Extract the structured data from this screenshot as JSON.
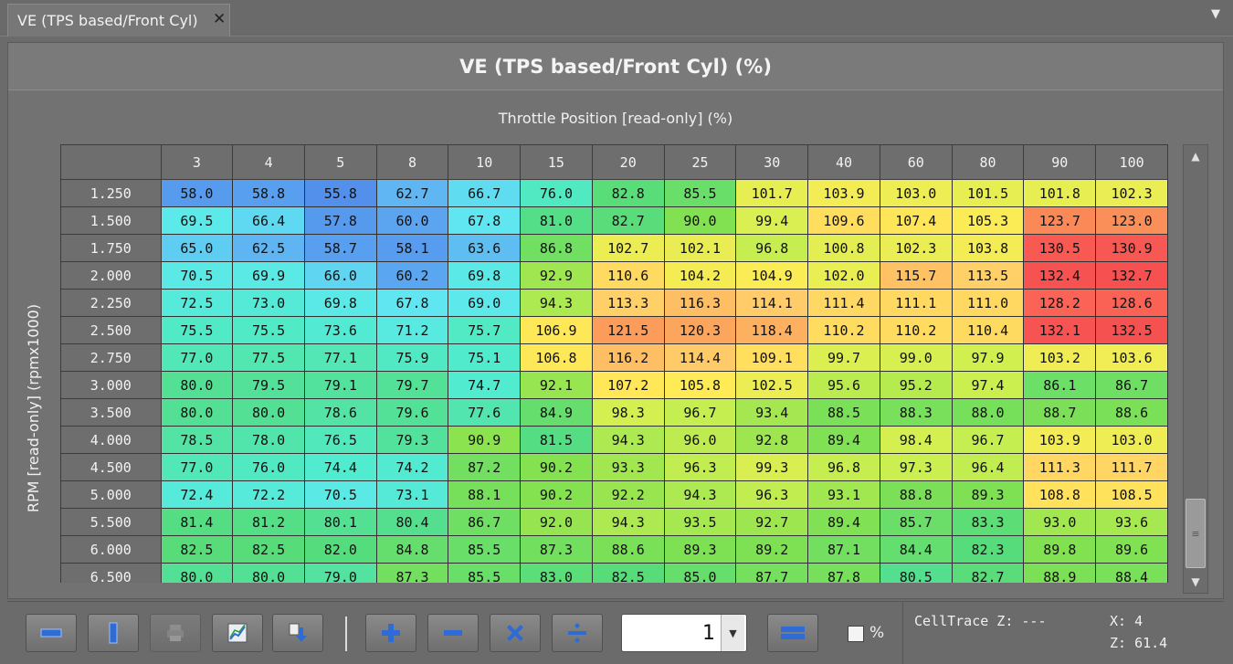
{
  "tab": {
    "title": "VE (TPS based/Front Cyl)",
    "close": "✕",
    "menu": "▼"
  },
  "panel": {
    "title": "VE (TPS based/Front Cyl) (%)",
    "x_axis": "Throttle Position [read-only]  (%)",
    "y_axis": "RPM [read-only]  (rpmx1000)"
  },
  "columns": [
    "3",
    "4",
    "5",
    "8",
    "10",
    "15",
    "20",
    "25",
    "30",
    "40",
    "60",
    "80",
    "90",
    "100"
  ],
  "rows": [
    {
      "rpm": "1.250",
      "values": [
        "58.0",
        "58.8",
        "55.8",
        "62.7",
        "66.7",
        "76.0",
        "82.8",
        "85.5",
        "101.7",
        "103.9",
        "103.0",
        "101.5",
        "101.8",
        "102.3"
      ]
    },
    {
      "rpm": "1.500",
      "values": [
        "69.5",
        "66.4",
        "57.8",
        "60.0",
        "67.8",
        "81.0",
        "82.7",
        "90.0",
        "99.4",
        "109.6",
        "107.4",
        "105.3",
        "123.7",
        "123.0"
      ]
    },
    {
      "rpm": "1.750",
      "values": [
        "65.0",
        "62.5",
        "58.7",
        "58.1",
        "63.6",
        "86.8",
        "102.7",
        "102.1",
        "96.8",
        "100.8",
        "102.3",
        "103.8",
        "130.5",
        "130.9"
      ]
    },
    {
      "rpm": "2.000",
      "values": [
        "70.5",
        "69.9",
        "66.0",
        "60.2",
        "69.8",
        "92.9",
        "110.6",
        "104.2",
        "104.9",
        "102.0",
        "115.7",
        "113.5",
        "132.4",
        "132.7"
      ]
    },
    {
      "rpm": "2.250",
      "values": [
        "72.5",
        "73.0",
        "69.8",
        "67.8",
        "69.0",
        "94.3",
        "113.3",
        "116.3",
        "114.1",
        "111.4",
        "111.1",
        "111.0",
        "128.2",
        "128.6"
      ]
    },
    {
      "rpm": "2.500",
      "values": [
        "75.5",
        "75.5",
        "73.6",
        "71.2",
        "75.7",
        "106.9",
        "121.5",
        "120.3",
        "118.4",
        "110.2",
        "110.2",
        "110.4",
        "132.1",
        "132.5"
      ]
    },
    {
      "rpm": "2.750",
      "values": [
        "77.0",
        "77.5",
        "77.1",
        "75.9",
        "75.1",
        "106.8",
        "116.2",
        "114.4",
        "109.1",
        "99.7",
        "99.0",
        "97.9",
        "103.2",
        "103.6"
      ]
    },
    {
      "rpm": "3.000",
      "values": [
        "80.0",
        "79.5",
        "79.1",
        "79.7",
        "74.7",
        "92.1",
        "107.2",
        "105.8",
        "102.5",
        "95.6",
        "95.2",
        "97.4",
        "86.1",
        "86.7"
      ]
    },
    {
      "rpm": "3.500",
      "values": [
        "80.0",
        "80.0",
        "78.6",
        "79.6",
        "77.6",
        "84.9",
        "98.3",
        "96.7",
        "93.4",
        "88.5",
        "88.3",
        "88.0",
        "88.7",
        "88.6"
      ]
    },
    {
      "rpm": "4.000",
      "values": [
        "78.5",
        "78.0",
        "76.5",
        "79.3",
        "90.9",
        "81.5",
        "94.3",
        "96.0",
        "92.8",
        "89.4",
        "98.4",
        "96.7",
        "103.9",
        "103.0"
      ]
    },
    {
      "rpm": "4.500",
      "values": [
        "77.0",
        "76.0",
        "74.4",
        "74.2",
        "87.2",
        "90.2",
        "93.3",
        "96.3",
        "99.3",
        "96.8",
        "97.3",
        "96.4",
        "111.3",
        "111.7"
      ]
    },
    {
      "rpm": "5.000",
      "values": [
        "72.4",
        "72.2",
        "70.5",
        "73.1",
        "88.1",
        "90.2",
        "92.2",
        "94.3",
        "96.3",
        "93.1",
        "88.8",
        "89.3",
        "108.8",
        "108.5"
      ]
    },
    {
      "rpm": "5.500",
      "values": [
        "81.4",
        "81.2",
        "80.1",
        "80.4",
        "86.7",
        "92.0",
        "94.3",
        "93.5",
        "92.7",
        "89.4",
        "85.7",
        "83.3",
        "93.0",
        "93.6"
      ]
    },
    {
      "rpm": "6.000",
      "values": [
        "82.5",
        "82.5",
        "82.0",
        "84.8",
        "85.5",
        "87.3",
        "88.6",
        "89.3",
        "89.2",
        "87.1",
        "84.4",
        "82.3",
        "89.8",
        "89.6"
      ]
    },
    {
      "rpm": "6.500",
      "values": [
        "80.0",
        "80.0",
        "79.0",
        "87.3",
        "85.5",
        "83.0",
        "82.5",
        "85.0",
        "87.7",
        "87.8",
        "80.5",
        "82.7",
        "88.9",
        "88.4"
      ]
    }
  ],
  "toolbar": {
    "buttons": [
      {
        "name": "horizontal-bar-button",
        "icon": "horizontal-bar-icon"
      },
      {
        "name": "vertical-bar-button",
        "icon": "vertical-bar-icon"
      },
      {
        "name": "print-button",
        "icon": "printer-icon",
        "disabled": true
      },
      {
        "name": "graph-button",
        "icon": "graph-icon"
      },
      {
        "name": "import-button",
        "icon": "import-icon"
      },
      {
        "name": "add-button",
        "icon": "plus-icon"
      },
      {
        "name": "subtract-button",
        "icon": "minus-icon"
      },
      {
        "name": "multiply-button",
        "icon": "multiply-icon"
      },
      {
        "name": "divide-button",
        "icon": "divide-icon"
      },
      {
        "name": "set-equal-button",
        "icon": "equals-icon"
      }
    ],
    "stepper_value": "1",
    "percent_label": "%"
  },
  "trace": {
    "cell_trace": "CellTrace Z: ---",
    "x": "X: 4",
    "z": "Z: 61.4"
  },
  "colors": {
    "accent_blue": "#3f7fe0",
    "icon_blue": "#2f6bd4"
  }
}
